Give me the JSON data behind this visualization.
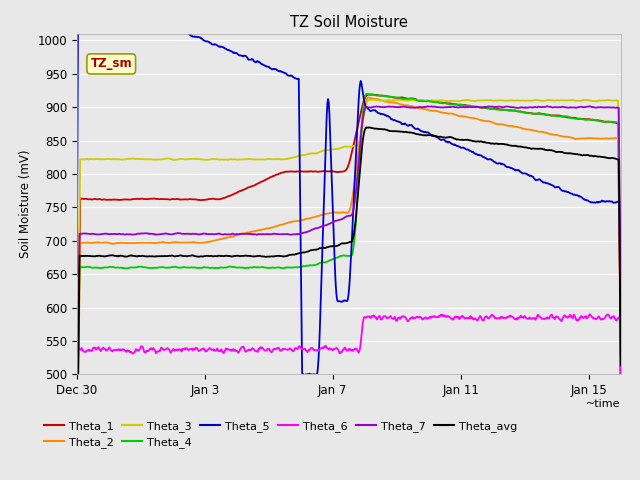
{
  "title": "TZ Soil Moisture",
  "ylabel": "Soil Moisture (mV)",
  "xlabel": "~time",
  "label_box": "TZ_sm",
  "bg_color": "#e8e8e8",
  "plot_bg": "#e8e8e8",
  "ylim": [
    500,
    1010
  ],
  "yticks": [
    500,
    550,
    600,
    650,
    700,
    750,
    800,
    850,
    900,
    950,
    1000
  ],
  "xstart": 0,
  "xend": 17,
  "xtick_positions": [
    0,
    4,
    8,
    12,
    16
  ],
  "xtick_labels": [
    "Dec 30",
    "Jan 3",
    "Jan 7",
    "Jan 11",
    "Jan 15"
  ],
  "series_colors": {
    "Theta_1": "#cc0000",
    "Theta_2": "#ff8800",
    "Theta_3": "#cccc00",
    "Theta_4": "#00cc00",
    "Theta_5": "#0000cc",
    "Theta_6": "#ff00ff",
    "Theta_7": "#9900cc",
    "Theta_avg": "#000000"
  },
  "legend_row1": [
    "Theta_1",
    "Theta_2",
    "Theta_3",
    "Theta_4",
    "Theta_5",
    "Theta_6"
  ],
  "legend_row2": [
    "Theta_7",
    "Theta_avg"
  ]
}
